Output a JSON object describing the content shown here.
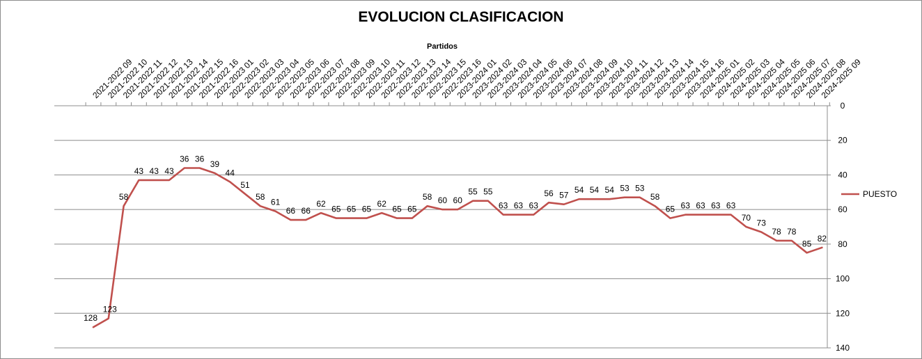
{
  "chart_data": {
    "type": "line",
    "title": "EVOLUCION CLASIFICACION",
    "xlabel": "Partidos",
    "ylabel": "",
    "y_reversed": true,
    "ylim": [
      0,
      140
    ],
    "yticks": [
      0,
      20,
      40,
      60,
      80,
      100,
      120,
      140
    ],
    "x_axis_position": "top",
    "y_axis_position": "right",
    "grid": "horizontal",
    "legend_position": "right",
    "categories": [
      "2021-2022 09",
      "2021-2022 10",
      "2021-2022 11",
      "2021-2022 12",
      "2021-2022 13",
      "2021-2022 14",
      "2021-2022 15",
      "2021-2022 16",
      "2022-2023 01",
      "2022-2023 02",
      "2022-2023 03",
      "2022-2023 04",
      "2022-2023 05",
      "2022-2023 06",
      "2022-2023 07",
      "2022-2023 08",
      "2022-2023 09",
      "2022-2023 10",
      "2022-2023 11",
      "2022-2023 12",
      "2022-2023 13",
      "2022-2023 14",
      "2022-2023 15",
      "2022-2023 16",
      "2023-2024 01",
      "2023-2024 02",
      "2023-2024 03",
      "2023-2024 04",
      "2023-2024 05",
      "2023-2024 06",
      "2023-2024 07",
      "2023-2024 08",
      "2023-2024 09",
      "2023-2024 10",
      "2023-2024 11",
      "2023-2024 12",
      "2023-2024 13",
      "2023-2024 14",
      "2023-2024 15",
      "2023-2024 16",
      "2024-2025 01",
      "2024-2025 02",
      "2024-2025 03",
      "2024-2025 04",
      "2024-2025 05",
      "2024-2025 06",
      "2024-2025 07",
      "2024-2025 08",
      "2024-2025 09"
    ],
    "series": [
      {
        "name": "PUESTO",
        "color": "#c0504d",
        "values": [
          128,
          123,
          58,
          43,
          43,
          43,
          36,
          36,
          39,
          44,
          51,
          58,
          61,
          66,
          66,
          62,
          65,
          65,
          65,
          62,
          65,
          65,
          58,
          60,
          60,
          55,
          55,
          63,
          63,
          63,
          56,
          57,
          54,
          54,
          54,
          53,
          53,
          58,
          65,
          63,
          63,
          63,
          63,
          70,
          73,
          78,
          78,
          85,
          82
        ]
      }
    ]
  }
}
